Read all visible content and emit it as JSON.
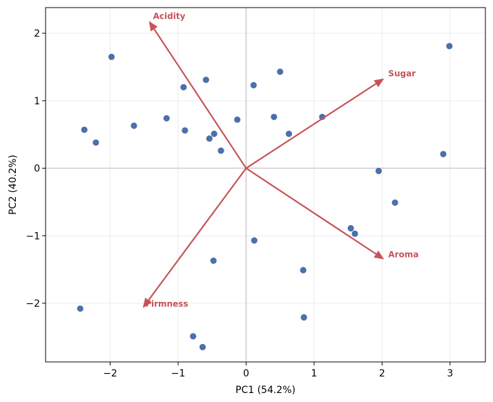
{
  "chart_data": {
    "type": "scatter",
    "title": "",
    "xlabel": "PC1 (54.2%)",
    "ylabel": "PC2 (40.2%)",
    "xlim": [
      -2.95,
      3.52
    ],
    "ylim": [
      -2.87,
      2.38
    ],
    "xticks": [
      -2,
      -1,
      0,
      1,
      2,
      3
    ],
    "yticks": [
      -2,
      -1,
      0,
      1,
      2
    ],
    "xtick_labels": [
      "−2",
      "−1",
      "0",
      "1",
      "2",
      "3"
    ],
    "ytick_labels": [
      "−2",
      "−1",
      "0",
      "1",
      "2"
    ],
    "grid": true,
    "origin_lines": true,
    "point_color": "#4c6fad",
    "loading_color": "#c45459",
    "points": [
      {
        "x": -1.98,
        "y": 1.65
      },
      {
        "x": -2.38,
        "y": 0.57
      },
      {
        "x": -2.21,
        "y": 0.38
      },
      {
        "x": -1.65,
        "y": 0.63
      },
      {
        "x": -1.17,
        "y": 0.74
      },
      {
        "x": -0.92,
        "y": 1.2
      },
      {
        "x": -0.9,
        "y": 0.56
      },
      {
        "x": -0.59,
        "y": 1.31
      },
      {
        "x": -0.47,
        "y": 0.51
      },
      {
        "x": -0.54,
        "y": 0.44
      },
      {
        "x": -0.37,
        "y": 0.26
      },
      {
        "x": -0.13,
        "y": 0.72
      },
      {
        "x": 0.11,
        "y": 1.23
      },
      {
        "x": 0.5,
        "y": 1.43
      },
      {
        "x": 0.41,
        "y": 0.76
      },
      {
        "x": 0.63,
        "y": 0.51
      },
      {
        "x": 1.12,
        "y": 0.76
      },
      {
        "x": 2.99,
        "y": 1.81
      },
      {
        "x": 2.9,
        "y": 0.21
      },
      {
        "x": 1.95,
        "y": -0.04
      },
      {
        "x": 2.19,
        "y": -0.51
      },
      {
        "x": 1.54,
        "y": -0.89
      },
      {
        "x": 1.6,
        "y": -0.97
      },
      {
        "x": 0.12,
        "y": -1.07
      },
      {
        "x": -0.48,
        "y": -1.37
      },
      {
        "x": 0.84,
        "y": -1.51
      },
      {
        "x": 0.85,
        "y": -2.21
      },
      {
        "x": -2.44,
        "y": -2.08
      },
      {
        "x": -0.78,
        "y": -2.49
      },
      {
        "x": -0.64,
        "y": -2.65
      }
    ],
    "loadings": [
      {
        "label": "Acidity",
        "x": -1.43,
        "y": 2.18
      },
      {
        "label": "Sugar",
        "x": 2.03,
        "y": 1.33
      },
      {
        "label": "Aroma",
        "x": 2.03,
        "y": -1.35
      },
      {
        "label": "Firmness",
        "x": -1.52,
        "y": -2.07
      }
    ]
  }
}
